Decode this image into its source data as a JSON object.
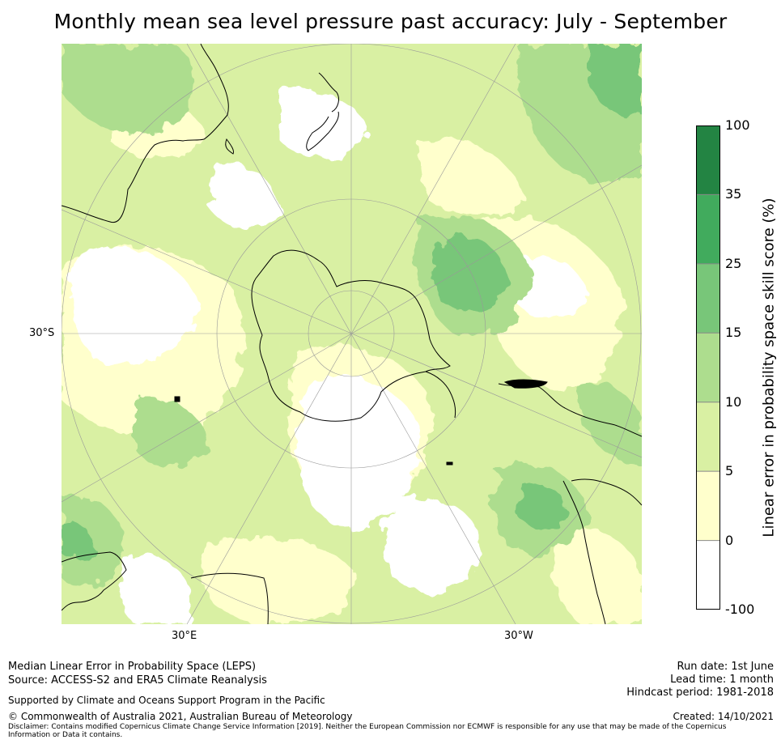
{
  "title": "Monthly mean sea level pressure past accuracy: July - September",
  "map": {
    "projection": "south-polar-stereographic",
    "lat_label": "30°S",
    "lon_labels": [
      "30°E",
      "30°W"
    ],
    "land_color": "#000000",
    "graticule_color": "#999999"
  },
  "colorbar": {
    "label": "Linear error in probability space skill score (%)",
    "ticks": [
      "100",
      "35",
      "25",
      "15",
      "10",
      "5",
      "0",
      "-100"
    ],
    "bins": [
      {
        "range": "-100 to 0",
        "color": "#ffffff"
      },
      {
        "range": "0 to 5",
        "color": "#ffffcc"
      },
      {
        "range": "5 to 10",
        "color": "#d9f0a3"
      },
      {
        "range": "10 to 15",
        "color": "#addd8e"
      },
      {
        "range": "15 to 25",
        "color": "#78c679"
      },
      {
        "range": "25 to 35",
        "color": "#41ab5d"
      },
      {
        "range": "35 to 100",
        "color": "#238443"
      }
    ]
  },
  "footer": {
    "left_line1": "Median Linear Error in Probability Space (LEPS)",
    "left_line2": "Source: ACCESS-S2 and ERA5 Climate Reanalysis",
    "supported": "Supported by Climate and Oceans Support Program in the Pacific",
    "copyright": "© Commonwealth of Australia 2021, Australian Bureau of Meteorology",
    "disclaimer": "Disclaimer: Contains modified Copernicus Climate Change Service Information [2019]. Neither the European Commission nor ECMWF is responsible for any use that may be made of the Copernicus Information or Data it contains.",
    "run_date": "Run date: 1st June",
    "lead_time": "Lead time: 1 month",
    "hindcast": "Hindcast period: 1981-2018",
    "created": "Created: 14/10/2021"
  }
}
